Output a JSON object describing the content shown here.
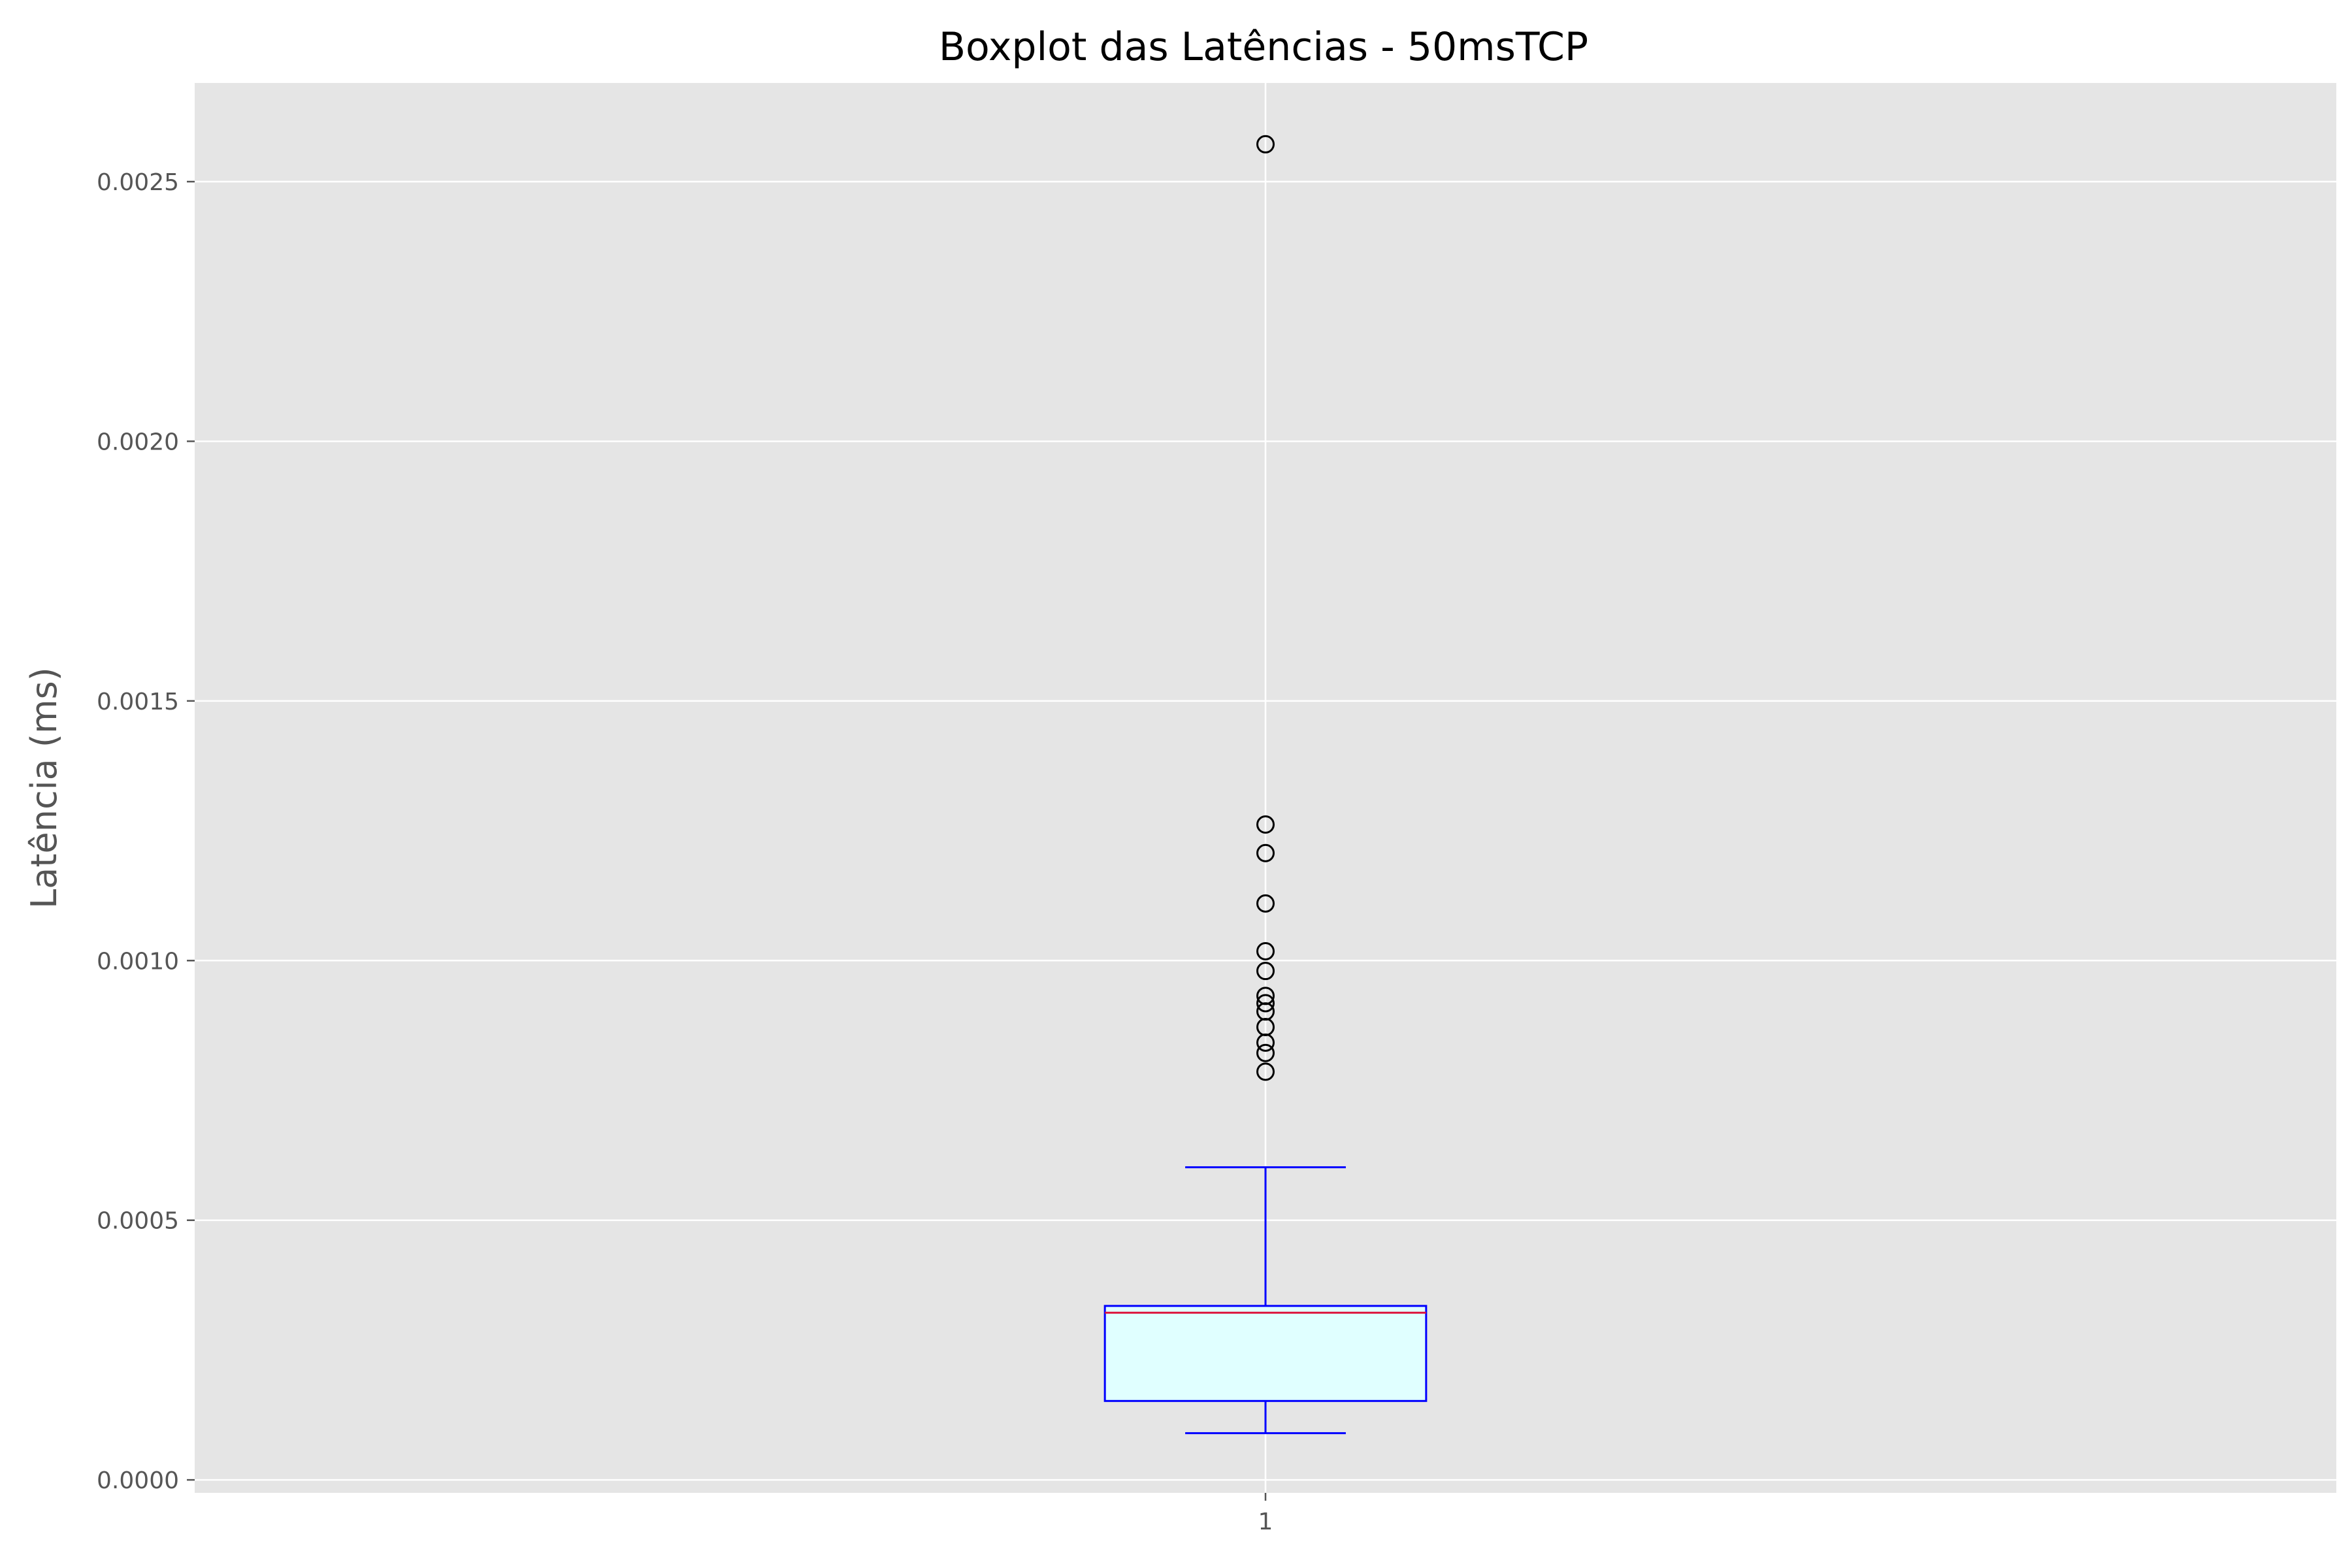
{
  "chart_data": {
    "type": "boxplot",
    "title": "Boxplot das Latências - 50msTCP",
    "xlabel": "",
    "ylabel": "Latência (ms)",
    "ylim": [
      -2.5e-05,
      0.00269
    ],
    "yticks": [
      0.0,
      0.0005,
      0.001,
      0.0015,
      0.002,
      0.0025
    ],
    "ytick_labels": [
      "0.0000",
      "0.0005",
      "0.0010",
      "0.0015",
      "0.0020",
      "0.0025"
    ],
    "categories": [
      "1"
    ],
    "grid": true,
    "boxes": [
      {
        "label": "1",
        "whisker_low": 9e-05,
        "q1": 0.000152,
        "median": 0.000322,
        "q3": 0.000335,
        "whisker_high": 0.000602,
        "outliers": [
          0.000786,
          0.000822,
          0.000842,
          0.000872,
          0.000902,
          0.000918,
          0.000932,
          0.00098,
          0.001018,
          0.00111,
          0.001207,
          0.001262,
          0.002572
        ]
      }
    ],
    "colors": {
      "plot_background": "#e5e5e5",
      "grid": "#ffffff",
      "box_edge": "#0000ff",
      "box_fill": "#e0ffff",
      "median": "#dc143c",
      "whisker": "#0000ff",
      "flier_edge": "#000000"
    }
  }
}
